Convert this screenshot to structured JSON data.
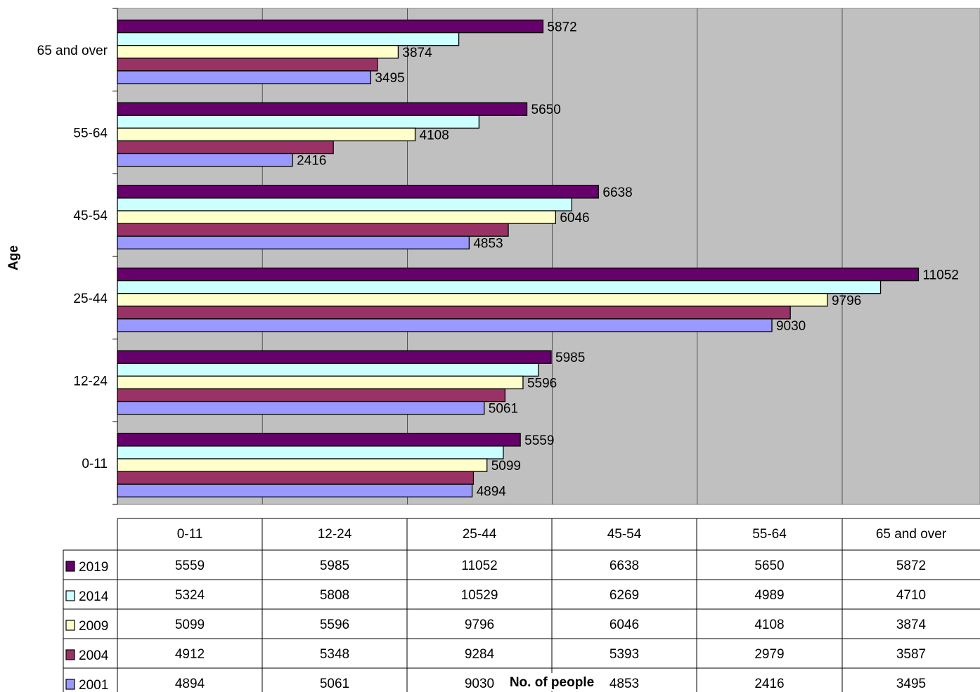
{
  "chart_data": {
    "type": "bar",
    "orientation": "horizontal",
    "title": "",
    "xlabel": "No. of people",
    "ylabel": "Age",
    "categories": [
      "0-11",
      "12-24",
      "25-44",
      "45-54",
      "55-64",
      "65 and over"
    ],
    "xlim": [
      0,
      12000
    ],
    "grid": true,
    "legend": "data table, left of rows",
    "series": [
      {
        "name": "2019",
        "color": "#66006A",
        "values": [
          5559,
          5985,
          11052,
          6638,
          5650,
          5872
        ]
      },
      {
        "name": "2014",
        "color": "#CCFFFF",
        "values": [
          5324,
          5808,
          10529,
          6269,
          4989,
          4710
        ]
      },
      {
        "name": "2009",
        "color": "#FFFFCC",
        "values": [
          5099,
          5596,
          9796,
          6046,
          4108,
          3874
        ]
      },
      {
        "name": "2004",
        "color": "#993366",
        "values": [
          4912,
          5348,
          9284,
          5393,
          2979,
          3587
        ]
      },
      {
        "name": "2001",
        "color": "#9999FF",
        "values": [
          4894,
          5061,
          9030,
          4853,
          2416,
          3495
        ]
      }
    ],
    "labeled_series": [
      "2019",
      "2009",
      "2001"
    ],
    "plot_background": "#C0C0C0"
  }
}
